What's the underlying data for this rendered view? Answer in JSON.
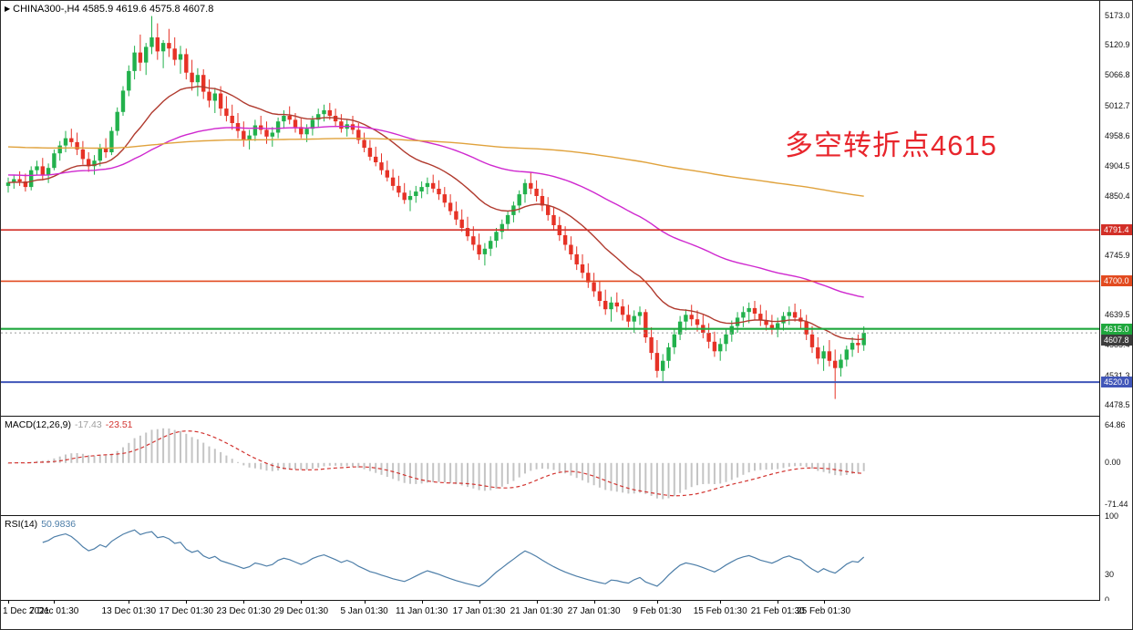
{
  "header": {
    "marker_icon": "▶",
    "symbol_info": "CHINA300-,H4 4585.9 4619.6 4575.8 4607.8"
  },
  "annotation": {
    "text": "多空转折点4615",
    "color": "#e8262d"
  },
  "macd_label": {
    "name": "MACD(12,26,9)",
    "value1": "-17.43",
    "value2": "-23.51"
  },
  "rsi_label": {
    "name": "RSI(14)",
    "value": "50.9836"
  },
  "chart_data": {
    "type": "candlestick",
    "symbol": "CHINA300-",
    "timeframe": "H4",
    "last_ohlc": {
      "open": 4585.9,
      "high": 4619.6,
      "low": 4575.8,
      "close": 4607.8
    },
    "colors": {
      "up": "#22b14c",
      "down": "#e63226"
    },
    "price_axis": {
      "min": 4460,
      "max": 5200,
      "ticks": [
        "5173.0",
        "5120.9",
        "5066.8",
        "5012.7",
        "4958.6",
        "4904.5",
        "4850.4",
        "4745.9",
        "4639.5",
        "4585.4",
        "4531.3",
        "4478.5"
      ]
    },
    "hlines": [
      {
        "value": 4791.4,
        "label": "4791.4",
        "color": "#d22f27",
        "width": 1.6
      },
      {
        "value": 4700.0,
        "label": "4700.0",
        "color": "#e24a1f",
        "width": 1.6
      },
      {
        "value": 4615.0,
        "label": "4615.0",
        "color": "#1fa73d",
        "width": 2.2
      },
      {
        "value": 4520.0,
        "label": "4520.0",
        "color": "#4156b8",
        "width": 2
      }
    ],
    "price_line": {
      "value": 4607.8,
      "label": "4607.8",
      "line_color": "#999999",
      "badge_color": "#3c3c3c"
    },
    "mas": [
      {
        "period": 21,
        "seed": null,
        "color": "#b03a2e"
      },
      {
        "period": 70,
        "seed": 4890,
        "color": "#cf28cf"
      },
      {
        "period": 350,
        "seed": 4940,
        "color": "#e0a23c"
      }
    ],
    "macd": {
      "params": "12,26,9",
      "hist_color": "#c4c4c4",
      "signal_color": "#d23430",
      "range": [
        -90,
        80
      ],
      "current": [
        -17.43,
        -23.51
      ],
      "axis": [
        {
          "value": 64.86,
          "label": "64.86"
        },
        {
          "value": 0,
          "label": "0.00"
        },
        {
          "value": -71.44,
          "label": "-71.44"
        }
      ]
    },
    "rsi": {
      "period": 14,
      "color": "#4d7ea8",
      "current": 50.9836,
      "axis": [
        {
          "value": 100,
          "label": "100"
        },
        {
          "value": 30,
          "label": "30"
        },
        {
          "value": 0,
          "label": "0"
        }
      ]
    },
    "time_axis": {
      "ticks": [
        {
          "label": "1 Dec 2021",
          "bar": 0
        },
        {
          "label": "7 Dec 01:30",
          "bar": 8
        },
        {
          "label": "13 Dec 01:30",
          "bar": 21
        },
        {
          "label": "17 Dec 01:30",
          "bar": 31
        },
        {
          "label": "23 Dec 01:30",
          "bar": 41
        },
        {
          "label": "29 Dec 01:30",
          "bar": 51
        },
        {
          "label": "5 Jan 01:30",
          "bar": 62
        },
        {
          "label": "11 Jan 01:30",
          "bar": 72
        },
        {
          "label": "17 Jan 01:30",
          "bar": 82
        },
        {
          "label": "21 Jan 01:30",
          "bar": 92
        },
        {
          "label": "27 Jan 01:30",
          "bar": 102
        },
        {
          "label": "9 Feb 01:30",
          "bar": 113
        },
        {
          "label": "15 Feb 01:30",
          "bar": 124
        },
        {
          "label": "21 Feb 01:30",
          "bar": 134
        },
        {
          "label": "25 Feb 01:30",
          "bar": 142
        }
      ]
    },
    "candles": [
      [
        4870,
        4885,
        4858,
        4876
      ],
      [
        4876,
        4890,
        4865,
        4882
      ],
      [
        4882,
        4896,
        4870,
        4878
      ],
      [
        4878,
        4892,
        4860,
        4868
      ],
      [
        4868,
        4905,
        4862,
        4898
      ],
      [
        4898,
        4915,
        4890,
        4905
      ],
      [
        4905,
        4920,
        4880,
        4890
      ],
      [
        4890,
        4910,
        4875,
        4902
      ],
      [
        4902,
        4935,
        4898,
        4928
      ],
      [
        4928,
        4950,
        4915,
        4942
      ],
      [
        4942,
        4968,
        4930,
        4955
      ],
      [
        4955,
        4972,
        4940,
        4948
      ],
      [
        4948,
        4965,
        4925,
        4935
      ],
      [
        4935,
        4950,
        4908,
        4918
      ],
      [
        4918,
        4930,
        4895,
        4905
      ],
      [
        4905,
        4925,
        4890,
        4915
      ],
      [
        4915,
        4945,
        4905,
        4938
      ],
      [
        4938,
        4955,
        4920,
        4930
      ],
      [
        4930,
        4975,
        4925,
        4968
      ],
      [
        4968,
        5010,
        4960,
        5002
      ],
      [
        5002,
        5048,
        4995,
        5040
      ],
      [
        5040,
        5085,
        5030,
        5075
      ],
      [
        5075,
        5120,
        5060,
        5108
      ],
      [
        5108,
        5140,
        5075,
        5090
      ],
      [
        5090,
        5125,
        5068,
        5118
      ],
      [
        5118,
        5173,
        5105,
        5135
      ],
      [
        5135,
        5160,
        5095,
        5110
      ],
      [
        5110,
        5130,
        5080,
        5125
      ],
      [
        5125,
        5150,
        5100,
        5115
      ],
      [
        5115,
        5135,
        5085,
        5095
      ],
      [
        5095,
        5120,
        5070,
        5105
      ],
      [
        5105,
        5115,
        5060,
        5072
      ],
      [
        5072,
        5095,
        5040,
        5055
      ],
      [
        5055,
        5080,
        5030,
        5068
      ],
      [
        5068,
        5078,
        5025,
        5038
      ],
      [
        5038,
        5060,
        5010,
        5022
      ],
      [
        5022,
        5045,
        5000,
        5035
      ],
      [
        5035,
        5048,
        4995,
        5008
      ],
      [
        5008,
        5030,
        4985,
        4995
      ],
      [
        4995,
        5015,
        4970,
        4982
      ],
      [
        4982,
        5000,
        4955,
        4968
      ],
      [
        4968,
        4985,
        4940,
        4952
      ],
      [
        4952,
        4970,
        4935,
        4960
      ],
      [
        4960,
        4988,
        4950,
        4978
      ],
      [
        4978,
        4995,
        4962,
        4970
      ],
      [
        4970,
        4985,
        4945,
        4958
      ],
      [
        4958,
        4975,
        4940,
        4965
      ],
      [
        4965,
        4992,
        4955,
        4985
      ],
      [
        4985,
        5005,
        4972,
        4995
      ],
      [
        4995,
        5012,
        4980,
        4988
      ],
      [
        4988,
        5000,
        4965,
        4975
      ],
      [
        4975,
        4990,
        4955,
        4962
      ],
      [
        4962,
        4980,
        4948,
        4972
      ],
      [
        4972,
        4995,
        4960,
        4988
      ],
      [
        4988,
        5008,
        4975,
        4998
      ],
      [
        4998,
        5015,
        4985,
        5005
      ],
      [
        5005,
        5018,
        4988,
        4995
      ],
      [
        4995,
        5008,
        4975,
        4985
      ],
      [
        4985,
        4998,
        4965,
        4972
      ],
      [
        4972,
        4988,
        4958,
        4980
      ],
      [
        4980,
        4995,
        4962,
        4970
      ],
      [
        4970,
        4982,
        4945,
        4952
      ],
      [
        4952,
        4965,
        4930,
        4938
      ],
      [
        4938,
        4952,
        4915,
        4922
      ],
      [
        4922,
        4940,
        4905,
        4912
      ],
      [
        4912,
        4928,
        4890,
        4898
      ],
      [
        4898,
        4915,
        4878,
        4885
      ],
      [
        4885,
        4900,
        4862,
        4870
      ],
      [
        4870,
        4888,
        4850,
        4858
      ],
      [
        4858,
        4875,
        4838,
        4845
      ],
      [
        4845,
        4862,
        4825,
        4852
      ],
      [
        4852,
        4870,
        4840,
        4860
      ],
      [
        4860,
        4878,
        4848,
        4868
      ],
      [
        4868,
        4885,
        4855,
        4875
      ],
      [
        4875,
        4890,
        4858,
        4865
      ],
      [
        4865,
        4880,
        4845,
        4855
      ],
      [
        4855,
        4868,
        4832,
        4840
      ],
      [
        4840,
        4855,
        4818,
        4825
      ],
      [
        4825,
        4842,
        4800,
        4810
      ],
      [
        4810,
        4828,
        4788,
        4795
      ],
      [
        4795,
        4815,
        4772,
        4780
      ],
      [
        4780,
        4798,
        4755,
        4765
      ],
      [
        4765,
        4785,
        4738,
        4748
      ],
      [
        4748,
        4768,
        4728,
        4758
      ],
      [
        4758,
        4780,
        4745,
        4772
      ],
      [
        4772,
        4795,
        4760,
        4788
      ],
      [
        4788,
        4810,
        4775,
        4802
      ],
      [
        4802,
        4825,
        4790,
        4818
      ],
      [
        4818,
        4842,
        4805,
        4835
      ],
      [
        4835,
        4862,
        4822,
        4855
      ],
      [
        4855,
        4882,
        4840,
        4875
      ],
      [
        4875,
        4895,
        4855,
        4865
      ],
      [
        4865,
        4880,
        4842,
        4852
      ],
      [
        4852,
        4865,
        4825,
        4835
      ],
      [
        4835,
        4850,
        4808,
        4818
      ],
      [
        4818,
        4832,
        4790,
        4800
      ],
      [
        4800,
        4815,
        4772,
        4782
      ],
      [
        4782,
        4798,
        4755,
        4765
      ],
      [
        4765,
        4780,
        4738,
        4748
      ],
      [
        4748,
        4762,
        4720,
        4730
      ],
      [
        4730,
        4748,
        4705,
        4715
      ],
      [
        4715,
        4732,
        4688,
        4698
      ],
      [
        4698,
        4715,
        4672,
        4682
      ],
      [
        4682,
        4700,
        4655,
        4665
      ],
      [
        4665,
        4685,
        4640,
        4650
      ],
      [
        4650,
        4672,
        4628,
        4662
      ],
      [
        4662,
        4680,
        4645,
        4655
      ],
      [
        4655,
        4668,
        4630,
        4640
      ],
      [
        4640,
        4658,
        4618,
        4628
      ],
      [
        4628,
        4648,
        4608,
        4638
      ],
      [
        4638,
        4655,
        4622,
        4645
      ],
      [
        4645,
        4650,
        4590,
        4600
      ],
      [
        4600,
        4618,
        4560,
        4572
      ],
      [
        4572,
        4595,
        4528,
        4540
      ],
      [
        4540,
        4570,
        4520,
        4558
      ],
      [
        4558,
        4590,
        4545,
        4582
      ],
      [
        4582,
        4615,
        4570,
        4605
      ],
      [
        4605,
        4638,
        4595,
        4628
      ],
      [
        4628,
        4650,
        4612,
        4640
      ],
      [
        4640,
        4658,
        4620,
        4632
      ],
      [
        4632,
        4648,
        4610,
        4622
      ],
      [
        4622,
        4640,
        4598,
        4608
      ],
      [
        4608,
        4625,
        4580,
        4592
      ],
      [
        4592,
        4610,
        4565,
        4575
      ],
      [
        4575,
        4598,
        4558,
        4588
      ],
      [
        4588,
        4615,
        4575,
        4605
      ],
      [
        4605,
        4630,
        4592,
        4620
      ],
      [
        4620,
        4645,
        4608,
        4635
      ],
      [
        4635,
        4655,
        4618,
        4645
      ],
      [
        4645,
        4662,
        4625,
        4652
      ],
      [
        4652,
        4665,
        4630,
        4642
      ],
      [
        4642,
        4658,
        4620,
        4630
      ],
      [
        4630,
        4648,
        4612,
        4622
      ],
      [
        4622,
        4640,
        4605,
        4615
      ],
      [
        4615,
        4635,
        4600,
        4625
      ],
      [
        4625,
        4645,
        4612,
        4638
      ],
      [
        4638,
        4655,
        4622,
        4645
      ],
      [
        4645,
        4660,
        4628,
        4635
      ],
      [
        4635,
        4650,
        4615,
        4628
      ],
      [
        4628,
        4640,
        4595,
        4605
      ],
      [
        4605,
        4620,
        4572,
        4582
      ],
      [
        4582,
        4600,
        4552,
        4562
      ],
      [
        4562,
        4585,
        4540,
        4575
      ],
      [
        4575,
        4595,
        4548,
        4558
      ],
      [
        4558,
        4578,
        4490,
        4545
      ],
      [
        4545,
        4570,
        4530,
        4560
      ],
      [
        4560,
        4585,
        4548,
        4578
      ],
      [
        4578,
        4600,
        4565,
        4590
      ],
      [
        4590,
        4605,
        4572,
        4586
      ],
      [
        4585.9,
        4619.6,
        4575.8,
        4607.8
      ]
    ]
  }
}
